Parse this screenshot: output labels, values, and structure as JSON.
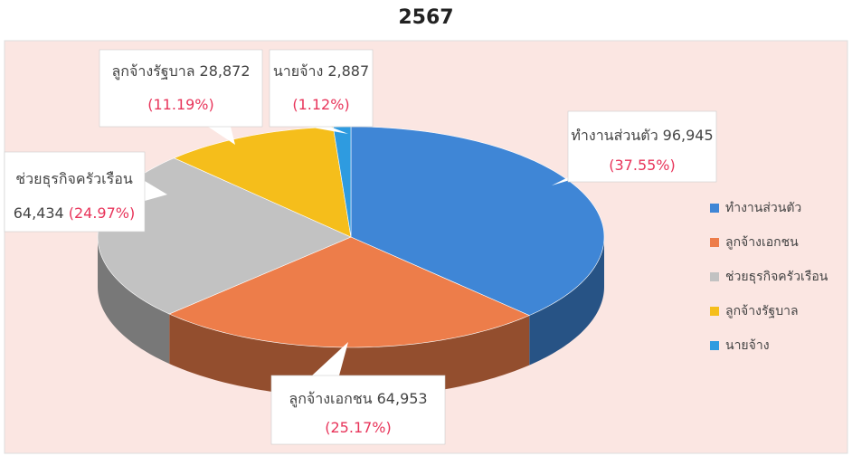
{
  "chart_data": {
    "type": "pie",
    "title": "2567",
    "categories": [
      "ทำงานส่วนตัว",
      "ลูกจ้างเอกชน",
      "ช่วยธุรกิจครัวเรือน",
      "ลูกจ้างรัฐบาล",
      "นายจ้าง"
    ],
    "values": [
      96945,
      64953,
      64434,
      28872,
      2887
    ],
    "value_labels": [
      "96,945",
      "64,953",
      "64,434",
      "28,872",
      "2,887"
    ],
    "percentages": [
      37.55,
      25.17,
      24.97,
      11.19,
      1.12
    ],
    "percent_labels": [
      "(37.55%)",
      "(25.17%)",
      "(24.97%)",
      "(11.19%)",
      "(1.12%)"
    ],
    "colors": [
      "#3f86d6",
      "#ed7d4a",
      "#c2c2c2",
      "#f5be1b",
      "#2e9be0"
    ],
    "legend": "right"
  }
}
